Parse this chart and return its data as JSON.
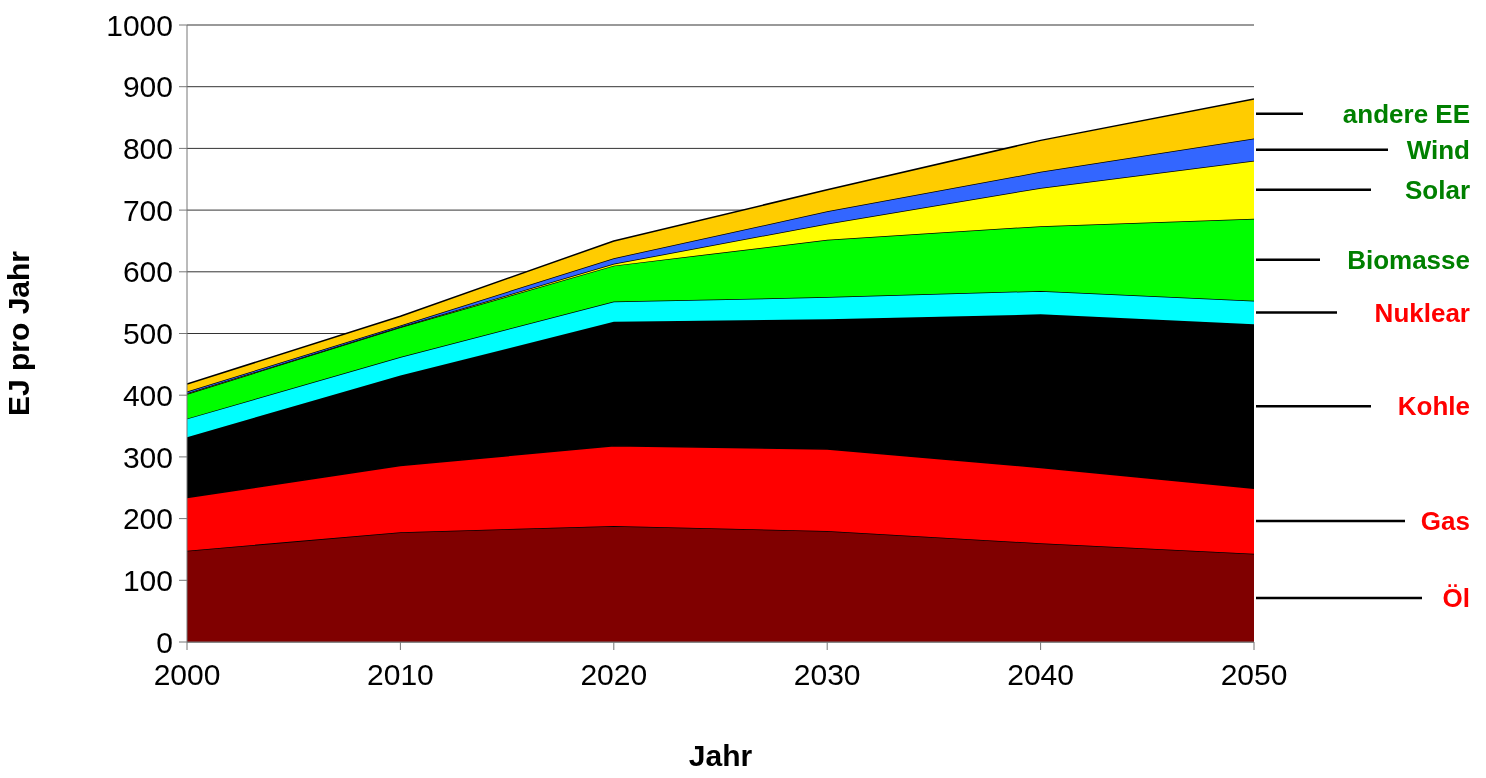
{
  "chart_data": {
    "type": "area",
    "stacked": true,
    "xlabel": "Jahr",
    "ylabel": "EJ pro Jahr",
    "x": [
      2000,
      2010,
      2020,
      2030,
      2040,
      2050
    ],
    "xlim": [
      2000,
      2050
    ],
    "xticks": [
      2000,
      2010,
      2020,
      2030,
      2040,
      2050
    ],
    "ylim": [
      0,
      1000
    ],
    "yticks": [
      0,
      100,
      200,
      300,
      400,
      500,
      600,
      700,
      800,
      900,
      1000
    ],
    "grid": "y",
    "legend": "right",
    "series": [
      {
        "name": "Öl",
        "color": "#800000",
        "values": [
          148,
          178,
          188,
          180,
          160,
          143
        ]
      },
      {
        "name": "Gas",
        "color": "#ff0000",
        "values": [
          86,
          108,
          130,
          133,
          123,
          106
        ]
      },
      {
        "name": "Kohle",
        "color": "#000000",
        "values": [
          98,
          146,
          201,
          210,
          248,
          266
        ]
      },
      {
        "name": "Nuklear",
        "color": "#00ffff",
        "values": [
          30,
          30,
          33,
          36,
          38,
          38
        ]
      },
      {
        "name": "Biomasse",
        "color": "#00ff00",
        "values": [
          40,
          48,
          58,
          93,
          105,
          133
        ]
      },
      {
        "name": "Solar",
        "color": "#ffff00",
        "values": [
          1,
          1,
          3,
          26,
          62,
          94
        ]
      },
      {
        "name": "Wind",
        "color": "#3366ff",
        "values": [
          3,
          2,
          9,
          20,
          26,
          36
        ]
      },
      {
        "name": "andere EE",
        "color": "#ffcc00",
        "values": [
          12,
          15,
          28,
          35,
          51,
          64
        ]
      }
    ]
  }
}
